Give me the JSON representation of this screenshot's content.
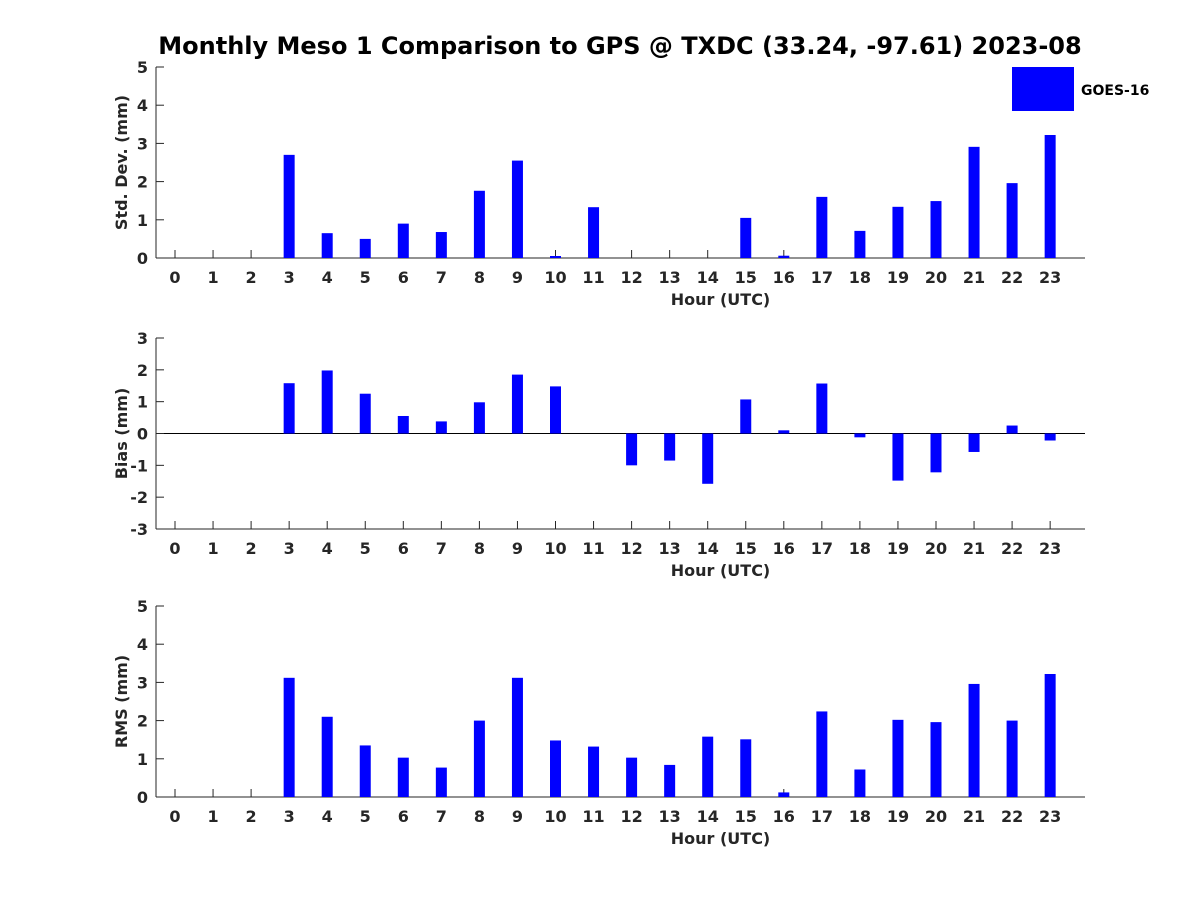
{
  "chart_data": {
    "type": "bar",
    "title": "Monthly Meso 1 Comparison to GPS @ TXDC (33.24, -97.61) 2023-08",
    "bar_color": "#0000ff",
    "legend": {
      "label": "GOES-16",
      "placement": "top-right"
    },
    "categories": [
      "0",
      "1",
      "2",
      "3",
      "4",
      "5",
      "6",
      "7",
      "8",
      "9",
      "10",
      "11",
      "12",
      "13",
      "14",
      "15",
      "16",
      "17",
      "18",
      "19",
      "20",
      "21",
      "22",
      "23"
    ],
    "panels": [
      {
        "name": "std-dev",
        "ylabel": "Std. Dev. (mm)",
        "xlabel": "Hour (UTC)",
        "ylim": [
          0,
          5
        ],
        "yticks": [
          0,
          1,
          2,
          3,
          4,
          5
        ],
        "values": [
          null,
          null,
          null,
          2.7,
          0.65,
          0.5,
          0.9,
          0.68,
          1.76,
          2.55,
          0.04,
          1.33,
          null,
          null,
          null,
          1.05,
          0.06,
          1.6,
          0.71,
          1.34,
          1.49,
          2.91,
          1.96,
          3.22
        ]
      },
      {
        "name": "bias",
        "ylabel": "Bias (mm)",
        "xlabel": "Hour (UTC)",
        "ylim": [
          -3,
          3
        ],
        "yticks": [
          -3,
          -2,
          -1,
          0,
          1,
          2,
          3
        ],
        "values": [
          null,
          null,
          null,
          1.58,
          1.98,
          1.25,
          0.55,
          0.38,
          0.98,
          1.85,
          1.48,
          null,
          -1.0,
          -0.85,
          -1.58,
          1.07,
          0.1,
          1.57,
          -0.12,
          -1.48,
          -1.22,
          -0.58,
          0.25,
          -0.22
        ]
      },
      {
        "name": "rms",
        "ylabel": "RMS (mm)",
        "xlabel": "Hour (UTC)",
        "ylim": [
          0,
          5
        ],
        "yticks": [
          0,
          1,
          2,
          3,
          4,
          5
        ],
        "values": [
          null,
          null,
          null,
          3.12,
          2.1,
          1.35,
          1.03,
          0.77,
          2.0,
          3.12,
          1.48,
          1.32,
          1.03,
          0.84,
          1.58,
          1.51,
          0.12,
          2.24,
          0.72,
          2.02,
          1.96,
          2.96,
          2.0,
          3.22
        ]
      }
    ]
  }
}
